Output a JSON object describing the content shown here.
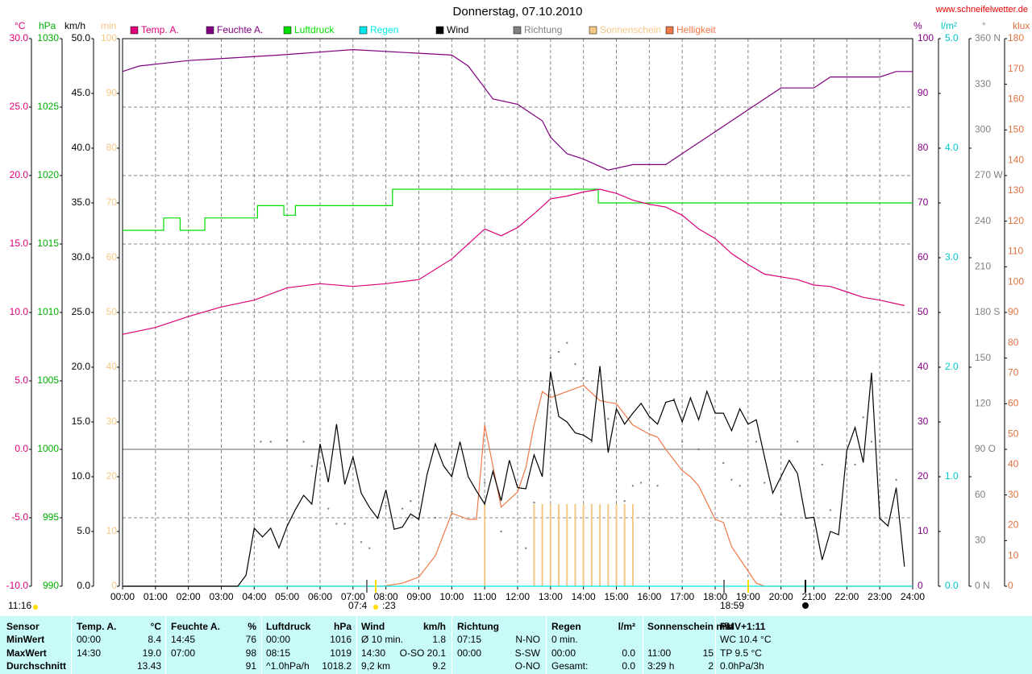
{
  "chart_data": {
    "type": "line",
    "title": "Donnerstag, 07.10.2010",
    "source": "www.schneifelwetter.de",
    "grid": true,
    "xlim": [
      0,
      24
    ],
    "xticks": [
      {
        "value": 0,
        "label": "00:00"
      },
      {
        "value": 1,
        "label": "01:00"
      },
      {
        "value": 2,
        "label": "02:00"
      },
      {
        "value": 3,
        "label": "03:00"
      },
      {
        "value": 4,
        "label": "04:00"
      },
      {
        "value": 5,
        "label": "05:00"
      },
      {
        "value": 6,
        "label": "06:00"
      },
      {
        "value": 7,
        "label": "07:00"
      },
      {
        "value": 8,
        "label": "08:00"
      },
      {
        "value": 9,
        "label": "09:00"
      },
      {
        "value": 10,
        "label": "10:00"
      },
      {
        "value": 11,
        "label": "11:00"
      },
      {
        "value": 12,
        "label": "12:00"
      },
      {
        "value": 13,
        "label": "13:00"
      },
      {
        "value": 14,
        "label": "14:00"
      },
      {
        "value": 15,
        "label": "15:00"
      },
      {
        "value": 16,
        "label": "16:00"
      },
      {
        "value": 17,
        "label": "17:00"
      },
      {
        "value": 18,
        "label": "18:00"
      },
      {
        "value": 19,
        "label": "19:00"
      },
      {
        "value": 20,
        "label": "20:00"
      },
      {
        "value": 21,
        "label": "21:00"
      },
      {
        "value": 22,
        "label": "22:00"
      },
      {
        "value": 23,
        "label": "23:00"
      },
      {
        "value": 24,
        "label": "24:00"
      }
    ],
    "axes": [
      {
        "label": "°C",
        "color": "#dd0077",
        "lim": [
          -10,
          30
        ],
        "ticks": [
          {
            "value": -10,
            "label": "-10.0"
          },
          {
            "value": -5,
            "label": "-5.0"
          },
          {
            "value": 0,
            "label": "0.0"
          },
          {
            "value": 5,
            "label": "5.0"
          },
          {
            "value": 10,
            "label": "10.0"
          },
          {
            "value": 15,
            "label": "15.0"
          },
          {
            "value": 20,
            "label": "20.0"
          },
          {
            "value": 25,
            "label": "25.0"
          },
          {
            "value": 30,
            "label": "30.0"
          }
        ]
      },
      {
        "label": "hPa",
        "color": "#00b000",
        "lim": [
          990,
          1030
        ],
        "ticks": [
          990,
          995,
          1000,
          1005,
          1010,
          1015,
          1020,
          1025,
          1030
        ]
      },
      {
        "label": "km/h",
        "color": "#000000",
        "lim": [
          0,
          50
        ],
        "ticks": [
          {
            "value": 0,
            "label": "0.0"
          },
          {
            "value": 5,
            "label": "5.0"
          },
          {
            "value": 10,
            "label": "10.0"
          },
          {
            "value": 15,
            "label": "15.0"
          },
          {
            "value": 20,
            "label": "20.0"
          },
          {
            "value": 25,
            "label": "25.0"
          },
          {
            "value": 30,
            "label": "30.0"
          },
          {
            "value": 35,
            "label": "35.0"
          },
          {
            "value": 40,
            "label": "40.0"
          },
          {
            "value": 45,
            "label": "45.0"
          },
          {
            "value": 50,
            "label": "50.0"
          }
        ]
      },
      {
        "label": "min",
        "color": "#f5c885",
        "lim": [
          0,
          100
        ],
        "ticks": [
          0,
          10,
          20,
          30,
          40,
          50,
          60,
          70,
          80,
          90,
          100
        ]
      },
      {
        "label": "%",
        "color": "#800080",
        "lim": [
          0,
          100
        ],
        "ticks": [
          0,
          10,
          20,
          30,
          40,
          50,
          60,
          70,
          80,
          90,
          100
        ]
      },
      {
        "label": "l/m²",
        "color": "#00c8c8",
        "lim": [
          0,
          5
        ],
        "ticks": [
          {
            "value": 0,
            "label": "0.0"
          },
          {
            "value": 1,
            "label": "1.0"
          },
          {
            "value": 2,
            "label": "2.0"
          },
          {
            "value": 3,
            "label": "3.0"
          },
          {
            "value": 4,
            "label": "4.0"
          },
          {
            "value": 5,
            "label": "5.0"
          }
        ]
      },
      {
        "label": "°",
        "color": "#808080",
        "lim": [
          0,
          360
        ],
        "ticks": [
          {
            "value": 0,
            "label": "0 N"
          },
          30,
          60,
          {
            "value": 90,
            "label": "90 O"
          },
          120,
          150,
          {
            "value": 180,
            "label": "180 S"
          },
          210,
          240,
          {
            "value": 270,
            "label": "270 W"
          },
          300,
          330,
          {
            "value": 360,
            "label": "360 N"
          }
        ]
      },
      {
        "label": "klux",
        "color": "#e07040",
        "lim": [
          0,
          180
        ],
        "ticks": [
          0,
          10,
          20,
          30,
          40,
          50,
          60,
          70,
          80,
          90,
          100,
          110,
          120,
          130,
          140,
          150,
          160,
          170,
          180
        ]
      }
    ],
    "series": [
      {
        "name": "Temp. A.",
        "color": "#dd0077",
        "axis": 0,
        "kind": "line",
        "x": [
          0,
          1,
          2,
          3,
          4,
          5,
          6,
          7,
          8,
          9,
          10,
          11,
          11.5,
          12,
          12.5,
          13,
          13.5,
          14,
          14.5,
          15,
          15.5,
          16,
          16.5,
          17,
          17.5,
          18,
          18.5,
          19,
          19.5,
          20,
          20.5,
          21,
          21.5,
          22,
          22.5,
          23,
          23.75
        ],
        "values": [
          8.4,
          8.9,
          9.7,
          10.4,
          10.9,
          11.8,
          12.1,
          11.9,
          12.1,
          12.4,
          13.9,
          16.1,
          15.6,
          16.2,
          17.2,
          18.3,
          18.5,
          18.8,
          19.0,
          18.7,
          18.2,
          17.9,
          17.7,
          17.1,
          16.1,
          15.4,
          14.3,
          13.5,
          12.8,
          12.6,
          12.4,
          12.0,
          11.9,
          11.5,
          11.1,
          10.9,
          10.5
        ]
      },
      {
        "name": "Feuchte A.",
        "color": "#800080",
        "axis": 4,
        "kind": "line",
        "x": [
          0,
          0.5,
          2,
          4.75,
          7,
          10,
          10.5,
          11.25,
          12,
          12.75,
          13,
          13.5,
          14,
          14.75,
          15.5,
          16.5,
          17,
          18,
          19,
          20,
          21,
          21.5,
          23,
          23.5,
          24
        ],
        "values": [
          94,
          95,
          96,
          97,
          98,
          97,
          95,
          89,
          88,
          85,
          82,
          79,
          78,
          76,
          77,
          77,
          79,
          83,
          87,
          91,
          91,
          93,
          93,
          94,
          94
        ]
      },
      {
        "name": "Luftdruck",
        "color": "#00dd00",
        "axis": 1,
        "kind": "step",
        "x": [
          0,
          1.25,
          1.75,
          2.5,
          4.1,
          4.9,
          5.25,
          8.2,
          14.45,
          24
        ],
        "values": [
          1016,
          1016.9,
          1016,
          1016.9,
          1017.8,
          1017.1,
          1017.8,
          1019,
          1018,
          1018
        ]
      },
      {
        "name": "Regen",
        "color": "#00e8e8",
        "axis": 5,
        "kind": "line",
        "x": [
          0,
          24
        ],
        "values": [
          0,
          0
        ]
      },
      {
        "name": "Wind",
        "color": "#000000",
        "axis": 2,
        "kind": "line",
        "x": [
          0,
          3.5,
          3.75,
          4,
          4.25,
          4.5,
          4.75,
          5,
          5.25,
          5.5,
          5.75,
          6,
          6.25,
          6.5,
          6.75,
          7,
          7.25,
          7.5,
          7.75,
          8,
          8.25,
          8.5,
          8.75,
          9,
          9.25,
          9.5,
          9.75,
          10,
          10.25,
          10.5,
          10.75,
          11,
          11.25,
          11.5,
          11.75,
          12,
          12.25,
          12.5,
          12.75,
          13,
          13.25,
          13.5,
          13.75,
          14,
          14.25,
          14.5,
          14.75,
          15,
          15.25,
          15.5,
          15.75,
          16,
          16.25,
          16.5,
          16.75,
          17,
          17.25,
          17.5,
          17.75,
          18,
          18.25,
          18.5,
          18.75,
          19,
          19.25,
          19.5,
          19.75,
          20,
          20.25,
          20.5,
          20.75,
          21,
          21.25,
          21.5,
          21.75,
          22,
          22.25,
          22.5,
          22.75,
          23,
          23.25,
          23.5,
          23.75
        ],
        "values": [
          0,
          0,
          1,
          5.3,
          4.5,
          5.3,
          3.5,
          5.5,
          7,
          8.3,
          7.5,
          13,
          9.5,
          14.8,
          9.3,
          11.8,
          8.5,
          7.2,
          6.2,
          8.8,
          5.2,
          5.4,
          6.6,
          6.1,
          10.2,
          13,
          11,
          10,
          13.2,
          10,
          8.7,
          7.5,
          10.5,
          7.8,
          11.5,
          9,
          8.9,
          12,
          10,
          19.6,
          15.5,
          15,
          14,
          13.8,
          13.3,
          20.1,
          12.2,
          16.2,
          14.8,
          15.8,
          16.7,
          15.5,
          14.8,
          16.8,
          17,
          15,
          17.2,
          15.2,
          17.8,
          15.8,
          15.8,
          14.2,
          16.2,
          14.8,
          15.2,
          11.8,
          8.5,
          10,
          11.5,
          10.3,
          6.2,
          6.3,
          2.4,
          5,
          4.7,
          12.4,
          14.5,
          11.3,
          19.5,
          6.2,
          5.5,
          9,
          1.8
        ]
      },
      {
        "name": "Richtung",
        "color": "#808080",
        "axis": 6,
        "kind": "scatter",
        "x": [
          4.2,
          4.5,
          5,
          5.5,
          5.75,
          6.25,
          6.5,
          6.75,
          7.25,
          7.5,
          8,
          8.5,
          8.75,
          9,
          9.5,
          10,
          11,
          11.5,
          12.25,
          12.5,
          13,
          13.25,
          13.5,
          13.75,
          14,
          14.25,
          14.75,
          15.25,
          15.5,
          15.75,
          16.25,
          16.75,
          17,
          17.5,
          18.25,
          18.5,
          18.75,
          19.25,
          19.5,
          20,
          20.5,
          21.25,
          21.5,
          22.25,
          22.5,
          22.75,
          23,
          23.5
        ],
        "values": [
          95,
          95,
          96,
          95,
          79,
          51,
          41,
          41,
          29,
          25,
          53,
          51,
          56,
          45,
          45,
          49,
          68,
          36,
          25,
          55,
          150,
          154,
          160,
          146,
          137,
          95,
          110,
          56,
          66,
          68,
          66,
          123,
          95,
          90,
          81,
          70,
          66,
          95,
          68,
          47,
          95,
          80,
          50,
          80,
          111,
          95,
          95,
          70
        ]
      },
      {
        "name": "Sonnenschein",
        "color": "#f5c885",
        "axis": 3,
        "kind": "bar",
        "x": [
          11,
          12.5,
          12.75,
          13,
          13.25,
          13.5,
          13.75,
          14,
          14.25,
          14.5,
          14.75,
          15,
          15.25,
          15.5
        ],
        "values": [
          15,
          15,
          15,
          15,
          15,
          15,
          15,
          15,
          15,
          15,
          15,
          15,
          15,
          15
        ]
      },
      {
        "name": "Helligkeit",
        "color": "#f07848",
        "axis": 7,
        "kind": "line",
        "x": [
          0,
          7.9,
          8.5,
          9,
          9.5,
          9.75,
          10,
          10.5,
          10.75,
          11,
          11.5,
          12,
          12.25,
          12.5,
          12.75,
          13,
          13.5,
          14,
          14.5,
          15,
          15.5,
          16,
          16.25,
          16.5,
          17,
          17.25,
          17.5,
          18,
          18.25,
          18.5,
          19,
          19.25,
          19.5,
          24
        ],
        "values": [
          0,
          0,
          1,
          3,
          10,
          17,
          24,
          22,
          22,
          53,
          26,
          31,
          39,
          53,
          64,
          62,
          64,
          66,
          61,
          60,
          53,
          50,
          49,
          45,
          38,
          36,
          33,
          22,
          21,
          13,
          5,
          1,
          0,
          0
        ]
      }
    ],
    "annotations": [
      "11:16",
      "07:4",
      ":23",
      "18:59"
    ]
  },
  "table": {
    "header": [
      {
        "left": "Sensor"
      },
      {
        "left": "Temp. A.",
        "right": "°C"
      },
      {
        "left": "Feuchte A.",
        "right": "%"
      },
      {
        "left": "Luftdruck",
        "right": "hPa"
      },
      {
        "left": "Wind",
        "right": "km/h"
      },
      {
        "left": "Richtung"
      },
      {
        "left": "Regen",
        "right": "l/m²"
      },
      {
        "left": "Sonnenschein min"
      },
      {
        "left": "PMV+1:11"
      }
    ],
    "rows": [
      [
        {
          "left": "MinWert"
        },
        {
          "left": "00:00",
          "right": "8.4"
        },
        {
          "left": "14:45",
          "right": "76"
        },
        {
          "left": "00:00",
          "right": "1016"
        },
        {
          "left": "Ø 10 min.",
          "right": "1.8"
        },
        {
          "left": "07:15",
          "right": "N-NO"
        },
        {
          "left": "0 min."
        },
        {},
        {
          "left": "WC 10.4 °C"
        }
      ],
      [
        {
          "left": "MaxWert"
        },
        {
          "left": "14:30",
          "right": "19.0"
        },
        {
          "left": "07:00",
          "right": "98"
        },
        {
          "left": "08:15",
          "right": "1019"
        },
        {
          "left": "14:30",
          "right": "O-SO 20.1"
        },
        {
          "left": "00:00",
          "right": "S-SW"
        },
        {
          "left": "00:00",
          "right": "0.0"
        },
        {
          "left": "11:00",
          "right": "15"
        },
        {
          "left": "TP 9.5 °C"
        }
      ],
      [
        {
          "left": "Durchschnitt"
        },
        {
          "right": "13.43"
        },
        {
          "right": "91"
        },
        {
          "left": "^1.0hPa/h",
          "right": "1018.2"
        },
        {
          "left": "9,2 km",
          "right": "9.2"
        },
        {
          "right": "O-NO"
        },
        {
          "left": "Gesamt:",
          "right": "0.0"
        },
        {
          "left": "3:29 h",
          "right": "2"
        },
        {
          "left": "0.0hPa/3h"
        }
      ]
    ]
  }
}
